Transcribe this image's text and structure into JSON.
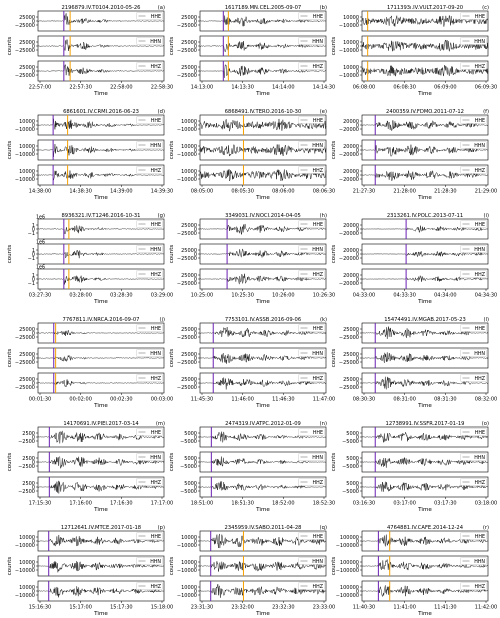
{
  "colors": {
    "trace": "#000000",
    "p_marker": "#6a1fb3",
    "s_marker": "#f5a000",
    "s_marker_alt": "#e2542b",
    "legend_line": "#888888"
  },
  "labels": {
    "ylabel": "counts",
    "xlabel": "Time",
    "channels": [
      "HHE",
      "HHN",
      "HHZ"
    ],
    "multiplier": "1e6"
  },
  "chart_data": [
    {
      "letter": "(a)",
      "title": "2196879.IV.T0104.2010-05-26",
      "yticks": [
        "25000",
        "0",
        "−25000"
      ],
      "xticks": [
        "22:57:00",
        "22:57:30",
        "22:58:00",
        "22:58:30"
      ],
      "p": 0.205,
      "s": 0.255,
      "onset": 0.21,
      "dur": 0.45,
      "decay": 5.0,
      "style": "decay",
      "scale": 0.95,
      "salt": false
    },
    {
      "letter": "(b)",
      "title": "1617189.MN.CEL.2005-09-07",
      "yticks": [
        "25000",
        "0",
        "−25000"
      ],
      "xticks": [
        "14:13:00",
        "14:13:30",
        "14:14:00",
        "14:14:30"
      ],
      "p": 0.185,
      "s": 0.225,
      "onset": 0.19,
      "dur": 0.75,
      "decay": 2.5,
      "style": "decay",
      "scale": 0.9,
      "salt": false
    },
    {
      "letter": "(c)",
      "title": "1711393ı.IV.VULT.2017-09-20",
      "yticks": [
        "10000",
        "0",
        "−10000"
      ],
      "xticks": [
        "06:08:00",
        "06:08:30",
        "06:09:00",
        "06:09:30"
      ],
      "p": 0.0,
      "s": 0.045,
      "onset": 0.0,
      "dur": 1.0,
      "decay": 1.0,
      "style": "noise",
      "scale": 0.75,
      "salt": false
    },
    {
      "letter": "(d)",
      "title": "6861601.IV.CRMI.2016-06-23",
      "yticks": [
        "10000",
        "0",
        "−10000"
      ],
      "xticks": [
        "14:38:00",
        "14:38:30",
        "14:39:00",
        "14:39:30"
      ],
      "p": 0.12,
      "s": 0.235,
      "onset": 0.12,
      "dur": 0.7,
      "decay": 3.0,
      "style": "decay",
      "scale": 0.95,
      "salt": false
    },
    {
      "letter": "(e)",
      "title": "6868491.IV.TERO.2016-10-30",
      "yticks": [
        "10000",
        "0",
        "−10000"
      ],
      "xticks": [
        "08:05:00",
        "08:05:30",
        "08:06:00",
        "08:06:30"
      ],
      "p": 0.0,
      "s": 0.345,
      "onset": 0.0,
      "dur": 1.0,
      "decay": 1.0,
      "style": "noise",
      "scale": 0.8,
      "salt": false
    },
    {
      "letter": "(f)",
      "title": "2400359.IV.FDMO.2011-07-12",
      "yticks": [
        "20000",
        "0",
        "−20000"
      ],
      "xticks": [
        "21:27:30",
        "21:28:00",
        "21:28:30",
        "21:29:00"
      ],
      "p": 0.105,
      "s": 0.0,
      "onset": 0.11,
      "dur": 0.85,
      "decay": 1.2,
      "style": "decay",
      "scale": 0.85,
      "salt": false
    },
    {
      "letter": "(g)",
      "title": "8936321.IV.T1246.2016-10-31",
      "yticks": [
        "1",
        "0",
        "−1"
      ],
      "xticks": [
        "03:27:30",
        "03:28:00",
        "03:28:30",
        "03:29:00"
      ],
      "p": 0.205,
      "s": 0.245,
      "onset": 0.21,
      "dur": 0.35,
      "decay": 6.0,
      "style": "decay",
      "scale": 0.95,
      "salt": false,
      "multiplier": true
    },
    {
      "letter": "(h)",
      "title": "3349031.IV.NOCI.2014-04-05",
      "yticks": [
        "25000",
        "0",
        "−25000"
      ],
      "xticks": [
        "10:25:00",
        "10:25:30",
        "10:26:00",
        "10:26:30"
      ],
      "p": 0.215,
      "s": 0.0,
      "onset": 0.22,
      "dur": 0.65,
      "decay": 2.0,
      "style": "decay",
      "scale": 0.85,
      "salt": false
    },
    {
      "letter": "(i)",
      "title": "2313261.IV.POLC.2013-07-11",
      "yticks": [
        "20000",
        "0",
        "−20000"
      ],
      "xticks": [
        "04:33:00",
        "04:33:30",
        "04:34:00",
        "04:34:30"
      ],
      "p": 0.35,
      "s": 0.0,
      "onset": 0.35,
      "dur": 0.6,
      "decay": 1.5,
      "style": "decay",
      "scale": 0.45,
      "salt": false
    },
    {
      "letter": "(j)",
      "title": "7767811.IV.NRCA.2016-09-07",
      "yticks": [
        "25000",
        "0",
        "−25000"
      ],
      "xticks": [
        "00:01:30",
        "00:02:00",
        "00:02:30",
        "00:03:00"
      ],
      "p": 0.125,
      "s": 0.14,
      "onset": 0.13,
      "dur": 0.25,
      "decay": 8.0,
      "style": "decay",
      "scale": 0.95,
      "salt": false
    },
    {
      "letter": "(k)",
      "title": "7753101.IV.ASSB.2016-09-06",
      "yticks": [
        "25000",
        "0",
        "−25000"
      ],
      "xticks": [
        "11:45:30",
        "11:46:00",
        "11:46:30",
        "11:47:00"
      ],
      "p": 0.105,
      "s": 0.0,
      "onset": 0.11,
      "dur": 0.8,
      "decay": 1.6,
      "style": "decay",
      "scale": 0.85,
      "salt": false
    },
    {
      "letter": "(l)",
      "title": "15474491.IV.MGAB.2017-05-23",
      "yticks": [
        "25000",
        "0",
        "−25000"
      ],
      "xticks": [
        "08:30:30",
        "08:31:00",
        "08:31:30",
        "08:32:00"
      ],
      "p": 0.105,
      "s": 0.0,
      "onset": 0.11,
      "dur": 0.75,
      "decay": 1.8,
      "style": "decay",
      "scale": 0.9,
      "salt": false
    },
    {
      "letter": "(m)",
      "title": "14170691.IV.PIEI.2017-03-14",
      "yticks": [
        "2500",
        "0",
        "−2500"
      ],
      "xticks": [
        "17:15:30",
        "17:16:00",
        "17:16:30",
        "17:17:00"
      ],
      "p": 0.09,
      "s": 0.0,
      "onset": 0.09,
      "dur": 0.85,
      "decay": 1.3,
      "style": "decay",
      "scale": 0.85,
      "salt": false
    },
    {
      "letter": "(n)",
      "title": "2474319.IV.ATPC.2012-01-09",
      "yticks": [
        "5000",
        "0",
        "−5000"
      ],
      "xticks": [
        "18:51:00",
        "18:51:30",
        "18:52:00",
        "18:52:30"
      ],
      "p": 0.09,
      "s": 0.0,
      "onset": 0.09,
      "dur": 0.8,
      "decay": 2.0,
      "style": "decay",
      "scale": 0.75,
      "salt": false
    },
    {
      "letter": "(o)",
      "title": "12738991.IV.SSFR.2017-01-19",
      "yticks": [
        "5000",
        "0",
        "−5000"
      ],
      "xticks": [
        "03:16:30",
        "03:17:00",
        "03:17:30",
        "03:18:00"
      ],
      "p": 0.105,
      "s": 0.0,
      "onset": 0.11,
      "dur": 0.85,
      "decay": 1.0,
      "style": "decay",
      "scale": 0.7,
      "salt": false
    },
    {
      "letter": "(p)",
      "title": "12712641.IV.MTCE.2017-01-18",
      "yticks": [
        "10000",
        "0",
        "−10000"
      ],
      "xticks": [
        "15:16:30",
        "15:17:00",
        "15:17:30",
        "15:18:00"
      ],
      "p": 0.085,
      "s": 0.0,
      "onset": 0.09,
      "dur": 0.85,
      "decay": 1.4,
      "style": "decay",
      "scale": 0.8,
      "salt": false
    },
    {
      "letter": "(q)",
      "title": "2345959.IV.SABO.2011-04-28",
      "yticks": [
        "10000",
        "0",
        "−10000"
      ],
      "xticks": [
        "23:31:30",
        "23:32:00",
        "23:32:30",
        "23:33:00"
      ],
      "p": 0.085,
      "s": 0.345,
      "onset": 0.09,
      "dur": 0.9,
      "decay": 0.8,
      "style": "decay",
      "scale": 0.85,
      "salt": false
    },
    {
      "letter": "(r)",
      "title": "4764881.IV.CAFE.2014-12-24",
      "yticks": [
        "100000",
        "0",
        "−100000"
      ],
      "xticks": [
        "11:40:30",
        "11:41:00",
        "11:41:30",
        "11:42:00"
      ],
      "p": 0.13,
      "s": 0.22,
      "onset": 0.13,
      "dur": 0.85,
      "decay": 1.6,
      "style": "decay",
      "scale": 0.85,
      "salt": false
    }
  ]
}
